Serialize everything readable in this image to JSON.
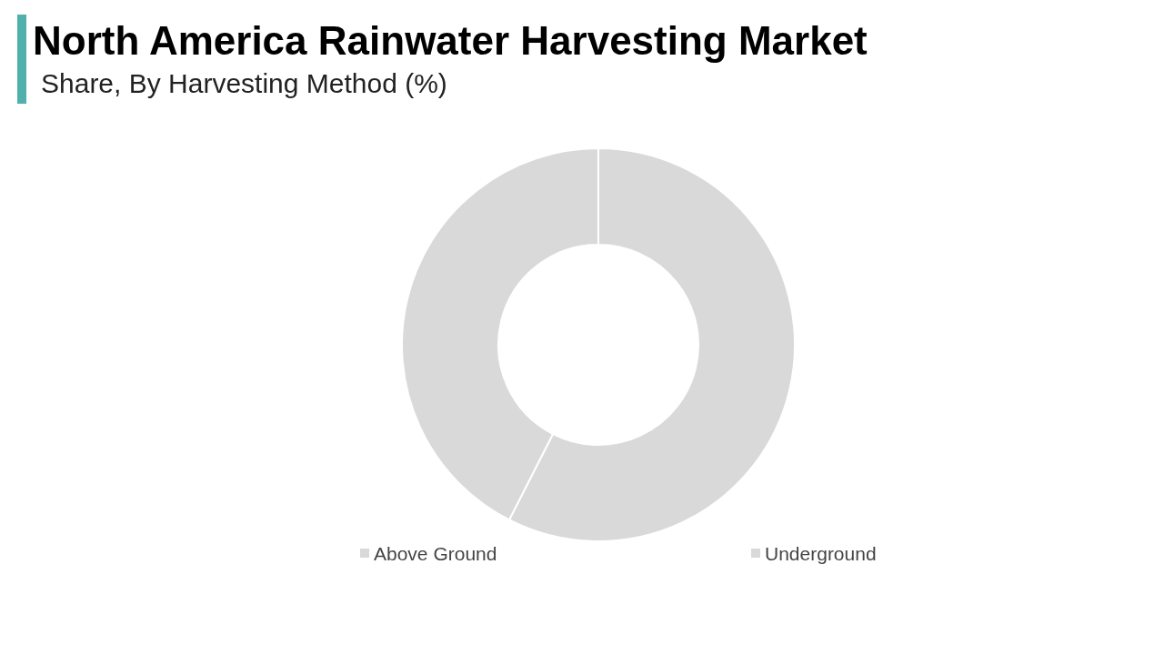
{
  "chart_data": {
    "type": "donut",
    "title": "North America Rainwater Harvesting Market",
    "subtitle": "Share, By Harvesting Method (%)",
    "categories": [
      "Above Ground",
      "Underground"
    ],
    "values": [
      57.5,
      42.5
    ],
    "colors": [
      "#d9d9d9",
      "#d9d9d9"
    ],
    "legend": "bottom"
  }
}
